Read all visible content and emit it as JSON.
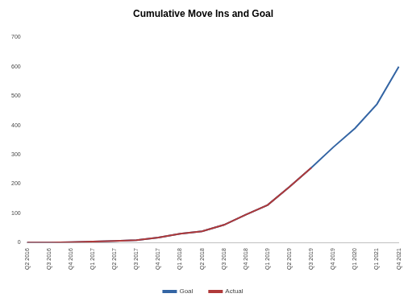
{
  "chart_data": {
    "type": "line",
    "title": "Cumulative Move Ins and Goal",
    "categories": [
      "Q2 2016",
      "Q3 2016",
      "Q4 2016",
      "Q1 2017",
      "Q2 2017",
      "Q3 2017",
      "Q4 2017",
      "Q1 2018",
      "Q2 2018",
      "Q3 2018",
      "Q4 2018",
      "Q1 2019",
      "Q2 2019",
      "Q3 2019",
      "Q4 2019",
      "Q1 2020",
      "Q1 2021",
      "Q4 2021"
    ],
    "series": [
      {
        "name": "Goal",
        "color": "#3465a4",
        "values": [
          0,
          0,
          1,
          3,
          5,
          8,
          17,
          30,
          38,
          60,
          95,
          128,
          190,
          255,
          325,
          390,
          472,
          600
        ]
      },
      {
        "name": "Actual",
        "color": "#b03a3a",
        "values": [
          0,
          0,
          1,
          3,
          5,
          8,
          17,
          30,
          38,
          60,
          95,
          128,
          190,
          255,
          null,
          null,
          null,
          null
        ]
      }
    ],
    "ylim": [
      0,
      700
    ],
    "yticks": [
      0,
      100,
      200,
      300,
      400,
      500,
      600,
      700
    ],
    "grid": false,
    "legend": "bottom"
  }
}
